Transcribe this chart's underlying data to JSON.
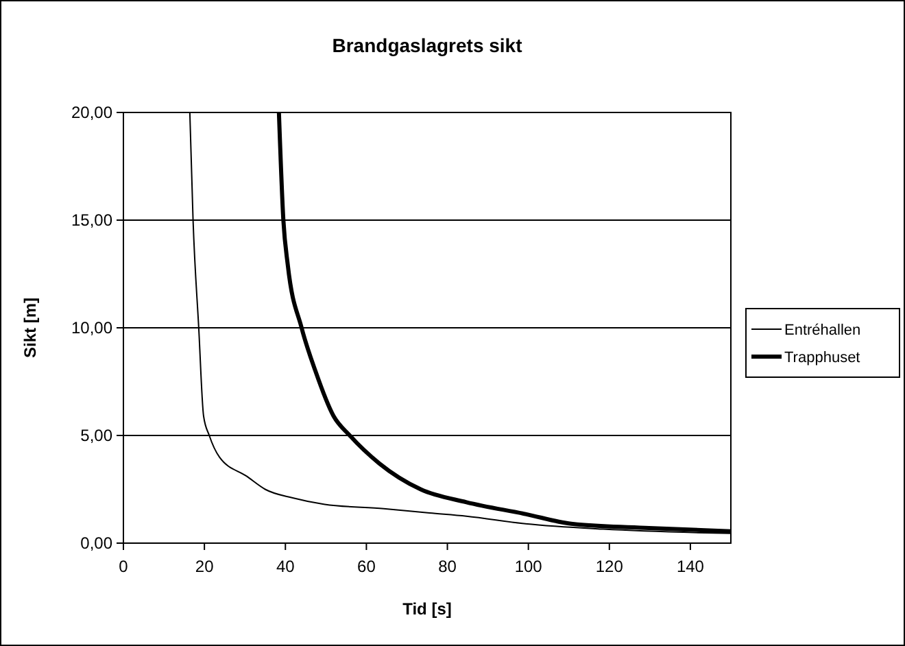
{
  "chart_data": {
    "type": "line",
    "title": "Brandgaslagrets sikt",
    "xlabel": "Tid [s]",
    "ylabel": "Sikt [m]",
    "xlim": [
      0,
      150
    ],
    "xticks": [
      0,
      20,
      40,
      60,
      80,
      100,
      120,
      140
    ],
    "ylim": [
      0,
      20
    ],
    "yticks": [
      {
        "value": 0,
        "label": "0,00"
      },
      {
        "value": 5,
        "label": "5,00"
      },
      {
        "value": 10,
        "label": "10,00"
      },
      {
        "value": 15,
        "label": "15,00"
      },
      {
        "value": 20,
        "label": "20,00"
      }
    ],
    "grid": "y",
    "legend": "right",
    "marker": "none",
    "line_style": "solid",
    "series": [
      {
        "name": "Entréhallen",
        "color": "#000000",
        "x": [
          16.4,
          17.2,
          18.6,
          19.8,
          21.2,
          23.7,
          30.5,
          35,
          41.8,
          49.7,
          64.3,
          75.6,
          84.7,
          99.3,
          118.5,
          150
        ],
        "values": [
          20,
          15,
          10,
          5.9,
          5,
          4,
          3.1,
          2.5,
          2.1,
          1.8,
          1.6,
          1.4,
          1.25,
          0.9,
          0.65,
          0.45
        ]
      },
      {
        "name": "Trapphuset",
        "color": "#000000",
        "x": [
          38.4,
          39.5,
          40.6,
          44,
          47.4,
          51.9,
          55.9,
          63.2,
          73.4,
          84.7,
          99.3,
          110.6,
          129.8,
          150
        ],
        "values": [
          20,
          15,
          12.9,
          10,
          8,
          5.9,
          5,
          3.7,
          2.5,
          1.9,
          1.35,
          0.9,
          0.7,
          0.55
        ]
      }
    ]
  }
}
